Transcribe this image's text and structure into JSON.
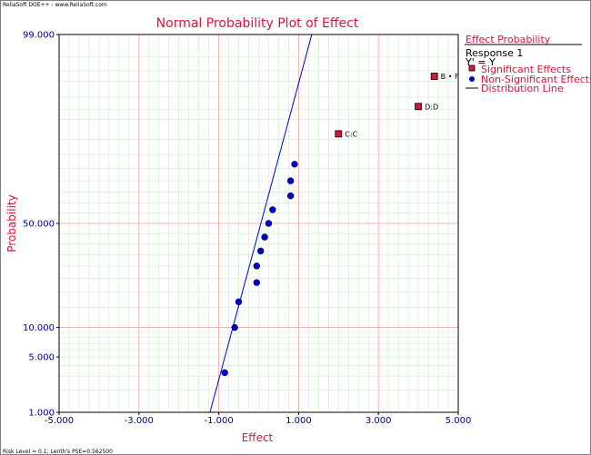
{
  "app": {
    "header": "ReliaSoft DOE++ - www.ReliaSoft.com",
    "footer": "Risk Level = 0.1; Lenth's PSE=0.562500"
  },
  "colors": {
    "accent": "#dc143c",
    "axis_text": "#00008b",
    "line": "#0000cd",
    "point": "#0000cd",
    "significant": "#dc143c",
    "major_grid": "#f4a6a6",
    "minor_grid": "#c6f0c6"
  },
  "chart_data": {
    "type": "scatter",
    "title": "Normal Probability Plot of Effect",
    "xlabel": "Effect",
    "ylabel": "Probability",
    "xlim": [
      -5,
      5
    ],
    "ylim": [
      1,
      99
    ],
    "yscale": "normal-probability",
    "grid": true,
    "x_ticks": [
      -5,
      -3,
      -1,
      1,
      3,
      5
    ],
    "x_tick_labels": [
      "-5.000",
      "-3.000",
      "-1.000",
      "1.000",
      "3.000",
      "5.000"
    ],
    "y_ticks": [
      1,
      5,
      10,
      50,
      99
    ],
    "y_tick_labels": [
      "1.000",
      "5.000",
      "10.000",
      "50.000",
      "99.000"
    ],
    "significant_points": [
      {
        "label": "B • F",
        "x": 4.4,
        "y": 96.5
      },
      {
        "label": "D:D",
        "x": 4.0,
        "y": 92.5
      },
      {
        "label": "C:C",
        "x": 2.0,
        "y": 86.5
      }
    ],
    "non_significant_points": [
      {
        "x": -0.85,
        "y": 3.3
      },
      {
        "x": -0.6,
        "y": 10.0
      },
      {
        "x": -0.5,
        "y": 16.7
      },
      {
        "x": -0.05,
        "y": 23.3
      },
      {
        "x": -0.05,
        "y": 30.0
      },
      {
        "x": 0.05,
        "y": 36.7
      },
      {
        "x": 0.15,
        "y": 43.3
      },
      {
        "x": 0.25,
        "y": 50.0
      },
      {
        "x": 0.35,
        "y": 56.7
      },
      {
        "x": 0.8,
        "y": 63.3
      },
      {
        "x": 0.8,
        "y": 70.0
      },
      {
        "x": 0.9,
        "y": 76.7
      }
    ],
    "distribution_line": [
      {
        "x": -1.22,
        "y": 1
      },
      {
        "x": 1.33,
        "y": 99
      }
    ],
    "legend": {
      "position": "right",
      "title": "Effect Probability",
      "response": "Response 1",
      "transform": "Y' = Y",
      "entries": [
        "Significant Effects",
        "Non-Significant Effects",
        "Distribution Line"
      ]
    }
  }
}
